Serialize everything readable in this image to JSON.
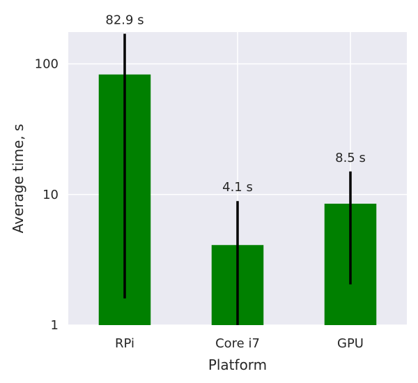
{
  "chart_data": {
    "type": "bar",
    "categories": [
      "RPi",
      "Core i7",
      "GPU"
    ],
    "values": [
      82.9,
      4.1,
      8.5
    ],
    "error_low": [
      1.6,
      1.0,
      2.05
    ],
    "error_high": [
      170,
      8.9,
      15
    ],
    "bar_labels": [
      "82.9 s",
      "4.1 s",
      "8.5 s"
    ],
    "title": "",
    "xlabel": "Platform",
    "ylabel": "Average time, s",
    "yscale": "log",
    "ylim": [
      1,
      175
    ],
    "yticks": [
      1,
      10,
      100
    ],
    "ytick_labels": [
      "1",
      "10",
      "100"
    ],
    "grid": true,
    "bar_color": "#008000",
    "error_color": "#000000",
    "background_color": "#eaeaf2"
  }
}
